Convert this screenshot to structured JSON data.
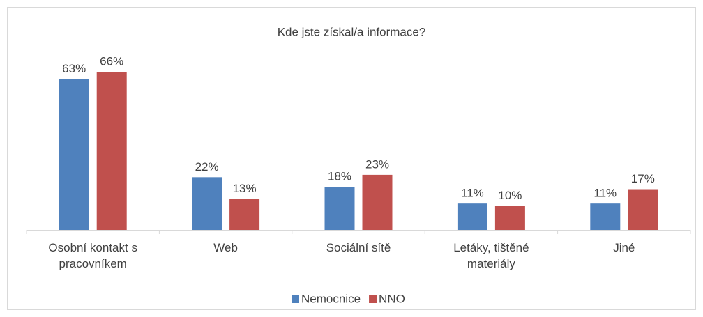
{
  "chart_data": {
    "type": "bar",
    "title": "Kde jste získal/a informace?",
    "categories": [
      "Osobní kontakt s pracovníkem",
      "Web",
      "Sociální sítě",
      "Letáky, tištěné materiály",
      "Jiné"
    ],
    "series": [
      {
        "name": "Nemocnice",
        "color": "#4f81bd",
        "values": [
          63,
          22,
          18,
          11,
          11
        ],
        "value_labels": [
          "63%",
          "22%",
          "18%",
          "11%",
          "11%"
        ]
      },
      {
        "name": "NNO",
        "color": "#c0504d",
        "values": [
          66,
          13,
          23,
          10,
          17
        ],
        "value_labels": [
          "66%",
          "13%",
          "23%",
          "10%",
          "17%"
        ]
      }
    ],
    "legend": "bottom"
  }
}
